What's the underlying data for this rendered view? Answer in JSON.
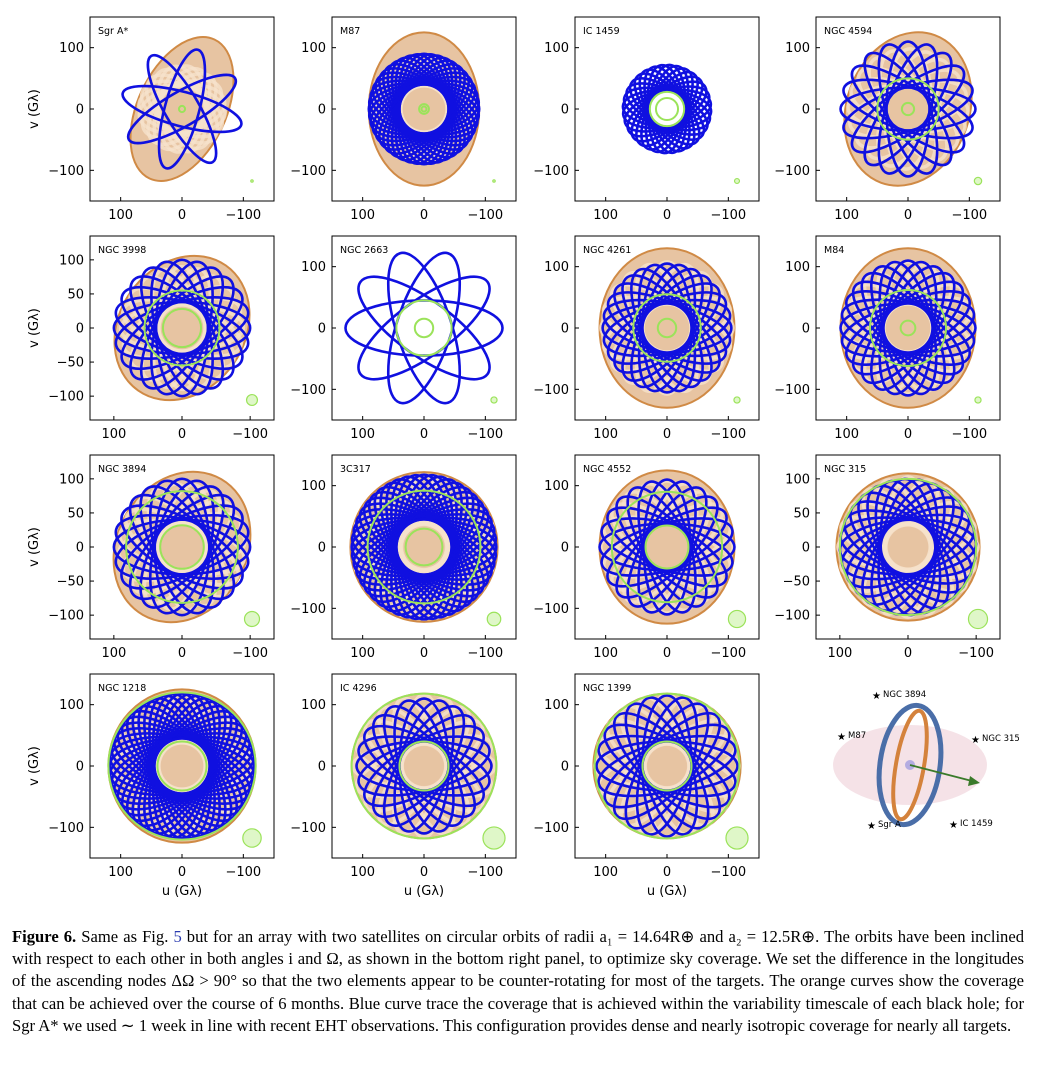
{
  "figure": {
    "x_axis_label": "u (Gλ)",
    "y_axis_label": "v (Gλ)",
    "colors": {
      "six_month": "#d08a45",
      "variability": "#1010e0",
      "circle": "#9be35a",
      "beam_fill": "#dff7c8",
      "axis": "#000000"
    }
  },
  "chart_data": [
    {
      "type": "scatter",
      "title": "Sgr A*",
      "xlim": [
        150,
        -150
      ],
      "ylim": [
        -150,
        150
      ],
      "x_ticks": [
        "100",
        "0",
        "−100"
      ],
      "y_ticks": [
        "100",
        "0",
        "−100"
      ],
      "x_tick_values": [
        100,
        0,
        -100
      ],
      "y_tick_values": [
        100,
        0,
        -100
      ],
      "orange_rx": 72,
      "orange_ry": 125,
      "orange_tilt": 25,
      "blue_count": 4,
      "blue_rx": 100,
      "blue_ry": 28,
      "blue_tilt": 15,
      "green_circles": [
        5
      ],
      "beam_radius": 1
    },
    {
      "type": "scatter",
      "title": "M87",
      "xlim": [
        150,
        -150
      ],
      "ylim": [
        -150,
        150
      ],
      "x_ticks": [
        "100",
        "0",
        "−100"
      ],
      "y_ticks": [
        "100",
        "0",
        "−100"
      ],
      "x_tick_values": [
        100,
        0,
        -100
      ],
      "y_tick_values": [
        100,
        0,
        -100
      ],
      "orange_rx": 90,
      "orange_ry": 125,
      "orange_tilt": 0,
      "blue_count": 22,
      "blue_rx": 90,
      "blue_ry": 40,
      "blue_tilt": 0,
      "green_circles": [
        4,
        8
      ],
      "beam_radius": 1
    },
    {
      "type": "scatter",
      "title": "IC 1459",
      "xlim": [
        150,
        -150
      ],
      "ylim": [
        -150,
        150
      ],
      "x_ticks": [
        "100",
        "0",
        "−100"
      ],
      "y_ticks": [
        "100",
        "0",
        "−100"
      ],
      "x_tick_values": [
        100,
        0,
        -100
      ],
      "y_tick_values": [
        100,
        0,
        -100
      ],
      "orange_rx": 0,
      "orange_ry": 0,
      "orange_tilt": 0,
      "blue_count": 16,
      "blue_rx": 72,
      "blue_ry": 30,
      "blue_tilt": 15,
      "green_circles": [
        18,
        28
      ],
      "beam_radius": 4
    },
    {
      "type": "scatter",
      "title": "NGC 4594",
      "xlim": [
        150,
        -150
      ],
      "ylim": [
        -150,
        150
      ],
      "x_ticks": [
        "100",
        "0",
        "−100"
      ],
      "y_ticks": [
        "100",
        "0",
        "−100"
      ],
      "x_tick_values": [
        100,
        0,
        -100
      ],
      "y_tick_values": [
        100,
        0,
        -100
      ],
      "orange_rx": 100,
      "orange_ry": 128,
      "orange_tilt": 20,
      "blue_count": 10,
      "blue_rx": 110,
      "blue_ry": 35,
      "blue_tilt": 0,
      "green_circles": [
        10,
        50
      ],
      "beam_radius": 6
    },
    {
      "type": "scatter",
      "title": "NGC 3998",
      "xlim": [
        135,
        -135
      ],
      "ylim": [
        -135,
        135
      ],
      "x_ticks": [
        "100",
        "0",
        "−100"
      ],
      "y_ticks": [
        "100",
        "50",
        "0",
        "−50",
        "−100"
      ],
      "x_tick_values": [
        100,
        0,
        -100
      ],
      "y_tick_values": [
        100,
        50,
        0,
        -50,
        -100
      ],
      "orange_rx": 92,
      "orange_ry": 112,
      "orange_tilt": 35,
      "blue_count": 12,
      "blue_rx": 100,
      "blue_ry": 38,
      "blue_tilt": 0,
      "green_circles": [
        28,
        55
      ],
      "beam_radius": 8
    },
    {
      "type": "scatter",
      "title": "NGC 2663",
      "xlim": [
        150,
        -150
      ],
      "ylim": [
        -150,
        150
      ],
      "x_ticks": [
        "100",
        "0",
        "−100"
      ],
      "y_ticks": [
        "100",
        "0",
        "−100"
      ],
      "x_tick_values": [
        100,
        0,
        -100
      ],
      "y_tick_values": [
        100,
        0,
        -100
      ],
      "orange_rx": 0,
      "orange_ry": 0,
      "orange_tilt": 0,
      "blue_count": 5,
      "blue_rx": 45,
      "blue_ry": 128,
      "blue_tilt": -18,
      "green_circles": [
        15,
        45
      ],
      "beam_radius": 5
    },
    {
      "type": "scatter",
      "title": "NGC 4261",
      "xlim": [
        150,
        -150
      ],
      "ylim": [
        -150,
        150
      ],
      "x_ticks": [
        "100",
        "0",
        "−100"
      ],
      "y_ticks": [
        "100",
        "0",
        "−100"
      ],
      "x_tick_values": [
        100,
        0,
        -100
      ],
      "y_tick_values": [
        100,
        0,
        -100
      ],
      "orange_rx": 110,
      "orange_ry": 130,
      "orange_tilt": 0,
      "blue_count": 14,
      "blue_rx": 105,
      "blue_ry": 40,
      "blue_tilt": 0,
      "green_circles": [
        15,
        55
      ],
      "beam_radius": 5
    },
    {
      "type": "scatter",
      "title": "M84",
      "xlim": [
        150,
        -150
      ],
      "ylim": [
        -150,
        150
      ],
      "x_ticks": [
        "100",
        "0",
        "−100"
      ],
      "y_ticks": [
        "100",
        "0",
        "−100"
      ],
      "x_tick_values": [
        100,
        0,
        -100
      ],
      "y_tick_values": [
        100,
        0,
        -100
      ],
      "orange_rx": 110,
      "orange_ry": 130,
      "orange_tilt": 0,
      "blue_count": 14,
      "blue_rx": 110,
      "blue_ry": 40,
      "blue_tilt": 0,
      "green_circles": [
        12,
        62
      ],
      "beam_radius": 5
    },
    {
      "type": "scatter",
      "title": "NGC 3894",
      "xlim": [
        135,
        -135
      ],
      "ylim": [
        -135,
        135
      ],
      "x_ticks": [
        "100",
        "0",
        "−100"
      ],
      "y_ticks": [
        "100",
        "50",
        "0",
        "−50",
        "−100"
      ],
      "x_tick_values": [
        100,
        0,
        -100
      ],
      "y_tick_values": [
        100,
        0,
        -100,
        50,
        -50
      ],
      "orange_rx": 95,
      "orange_ry": 115,
      "orange_tilt": 30,
      "blue_count": 12,
      "blue_rx": 100,
      "blue_ry": 40,
      "blue_tilt": 0,
      "green_circles": [
        32,
        82
      ],
      "beam_radius": 11
    },
    {
      "type": "scatter",
      "title": "3C317",
      "xlim": [
        150,
        -150
      ],
      "ylim": [
        -150,
        150
      ],
      "x_ticks": [
        "100",
        "0",
        "−100"
      ],
      "y_ticks": [
        "100",
        "0",
        "−100"
      ],
      "x_tick_values": [
        100,
        0,
        -100
      ],
      "y_tick_values": [
        100,
        0,
        -100
      ],
      "orange_rx": 120,
      "orange_ry": 122,
      "orange_tilt": 0,
      "blue_count": 24,
      "blue_rx": 118,
      "blue_ry": 45,
      "blue_tilt": 0,
      "green_circles": [
        30,
        92
      ],
      "beam_radius": 11
    },
    {
      "type": "scatter",
      "title": "NGC 4552",
      "xlim": [
        150,
        -150
      ],
      "ylim": [
        -150,
        150
      ],
      "x_ticks": [
        "100",
        "0",
        "−100"
      ],
      "y_ticks": [
        "100",
        "0",
        "−100"
      ],
      "x_tick_values": [
        100,
        0,
        -100
      ],
      "y_tick_values": [
        100,
        0,
        -100
      ],
      "orange_rx": 110,
      "orange_ry": 125,
      "orange_tilt": 0,
      "blue_count": 12,
      "blue_rx": 110,
      "blue_ry": 38,
      "blue_tilt": 0,
      "green_circles": [
        35,
        90
      ],
      "beam_radius": 14
    },
    {
      "type": "scatter",
      "title": "NGC 315",
      "xlim": [
        135,
        -135
      ],
      "ylim": [
        -135,
        135
      ],
      "x_ticks": [
        "100",
        "0",
        "−100"
      ],
      "y_ticks": [
        "100",
        "50",
        "0",
        "−50",
        "−100"
      ],
      "x_tick_values": [
        100,
        0,
        -100
      ],
      "y_tick_values": [
        100,
        50,
        0,
        -50,
        -100
      ],
      "orange_rx": 105,
      "orange_ry": 108,
      "orange_tilt": 0,
      "blue_count": 14,
      "blue_rx": 100,
      "blue_ry": 40,
      "blue_tilt": 10,
      "green_circles": [
        100
      ],
      "beam_radius": 14
    },
    {
      "type": "scatter",
      "title": "NGC 1218",
      "xlim": [
        150,
        -150
      ],
      "ylim": [
        -150,
        150
      ],
      "x_ticks": [
        "100",
        "0",
        "−100"
      ],
      "y_ticks": [
        "100",
        "0",
        "−100"
      ],
      "x_tick_values": [
        100,
        0,
        -100
      ],
      "y_tick_values": [
        100,
        0,
        -100
      ],
      "orange_rx": 120,
      "orange_ry": 125,
      "orange_tilt": 0,
      "blue_count": 24,
      "blue_rx": 118,
      "blue_ry": 45,
      "blue_tilt": 0,
      "green_circles": [
        40,
        120
      ],
      "beam_radius": 15
    },
    {
      "type": "scatter",
      "title": "IC 4296",
      "xlim": [
        150,
        -150
      ],
      "ylim": [
        -150,
        150
      ],
      "x_ticks": [
        "100",
        "0",
        "−100"
      ],
      "y_ticks": [
        "100",
        "0",
        "−100"
      ],
      "x_tick_values": [
        100,
        0,
        -100
      ],
      "y_tick_values": [
        100,
        0,
        -100
      ],
      "orange_rx": 118,
      "orange_ry": 118,
      "orange_tilt": 0,
      "blue_count": 12,
      "blue_rx": 110,
      "blue_ry": 40,
      "blue_tilt": 0,
      "green_circles": [
        40,
        118
      ],
      "beam_radius": 18
    },
    {
      "type": "scatter",
      "title": "NGC 1399",
      "xlim": [
        150,
        -150
      ],
      "ylim": [
        -150,
        150
      ],
      "x_ticks": [
        "100",
        "0",
        "−100"
      ],
      "y_ticks": [
        "100",
        "0",
        "−100"
      ],
      "x_tick_values": [
        100,
        0,
        -100
      ],
      "y_tick_values": [
        100,
        0,
        -100
      ],
      "orange_rx": 120,
      "orange_ry": 118,
      "orange_tilt": 0,
      "blue_count": 12,
      "blue_rx": 115,
      "blue_ry": 40,
      "blue_tilt": 0,
      "green_circles": [
        40,
        118
      ],
      "beam_radius": 18
    }
  ],
  "orbit_diagram": {
    "labels": [
      "NGC 3894",
      "M87",
      "NGC 315",
      "Sgr A",
      "IC 1459"
    ],
    "colors": {
      "orbit1": "#4a6ea8",
      "orbit2": "#d4823c",
      "plane": "#f4dfe4",
      "arrow": "#3a7a2a"
    }
  },
  "caption": {
    "label": "Figure 6.",
    "part1": " Same as Fig. ",
    "ref": "5",
    "part2": " but for an array with two satellites on circular orbits of radii a₁ = 14.64R⊕ and a₂ = 12.5R⊕. The orbits have been inclined with respect to each other in both angles i and Ω, as shown in the bottom right panel, to optimize sky coverage. We set the difference in the longitudes of the ascending nodes ΔΩ > 90° so that the two elements appear to be counter-rotating for most of the targets. The orange curves show the coverage that can be achieved over the course of 6 months. Blue curve trace the coverage that is achieved within the variability timescale of each black hole; for Sgr A* we used ∼ 1 week in line with recent EHT observations. This configuration provides dense and nearly isotropic coverage for nearly all targets."
  }
}
